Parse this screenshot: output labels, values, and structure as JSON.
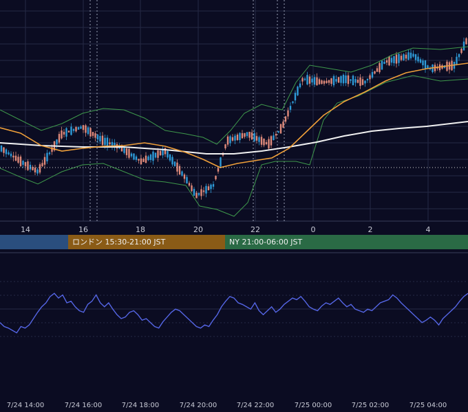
{
  "chart_data": {
    "type": "candlestick-with-indicators",
    "colors": {
      "background": "#0b0c22",
      "grid": "#262a45",
      "up_candle": "#2e9bd8",
      "down_candle": "#e08a7a",
      "bollinger": "#3f9a4c",
      "ma_short": "#f0a03a",
      "ma_long": "#f2f2f2",
      "oscillator": "#5566e6"
    },
    "price_panel": {
      "x_tick_labels": [
        "14",
        "16",
        "18",
        "20",
        "22",
        "0",
        "2",
        "4"
      ],
      "grid": true,
      "dashed_current_price_line": true
    },
    "sessions": [
      {
        "label": "",
        "color": "#2a4e7e"
      },
      {
        "label": "ロンドン 15:30-21:00 JST",
        "color": "#8a5b16"
      },
      {
        "label": "NY 21:00-06:00 JST",
        "color": "#2a6a45"
      }
    ],
    "oscillator_panel": {
      "x_tick_labels": [
        "7/24 14:00",
        "7/24 16:00",
        "7/24 18:00",
        "7/24 20:00",
        "7/24 22:00",
        "7/25 00:00",
        "7/25 02:00",
        "7/25 04:00"
      ],
      "series": [
        0.35,
        0.3,
        0.28,
        0.25,
        0.22,
        0.3,
        0.28,
        0.32,
        0.4,
        0.48,
        0.55,
        0.6,
        0.68,
        0.72,
        0.66,
        0.7,
        0.6,
        0.62,
        0.55,
        0.5,
        0.48,
        0.58,
        0.62,
        0.7,
        0.6,
        0.55,
        0.6,
        0.52,
        0.45,
        0.4,
        0.42,
        0.48,
        0.5,
        0.45,
        0.38,
        0.4,
        0.35,
        0.3,
        0.28,
        0.36,
        0.42,
        0.48,
        0.52,
        0.5,
        0.45,
        0.4,
        0.35,
        0.3,
        0.28,
        0.32,
        0.3,
        0.38,
        0.45,
        0.55,
        0.62,
        0.68,
        0.66,
        0.6,
        0.58,
        0.55,
        0.52,
        0.6,
        0.5,
        0.45,
        0.5,
        0.55,
        0.48,
        0.52,
        0.58,
        0.62,
        0.66,
        0.64,
        0.68,
        0.62,
        0.55,
        0.52,
        0.5,
        0.56,
        0.6,
        0.58,
        0.62,
        0.66,
        0.6,
        0.55,
        0.58,
        0.52,
        0.5,
        0.48,
        0.52,
        0.5,
        0.55,
        0.6,
        0.62,
        0.64,
        0.7,
        0.66,
        0.6,
        0.55,
        0.5,
        0.45,
        0.4,
        0.35,
        0.38,
        0.42,
        0.38,
        0.32,
        0.4,
        0.45,
        0.5,
        0.55,
        0.62,
        0.68,
        0.72
      ]
    }
  }
}
